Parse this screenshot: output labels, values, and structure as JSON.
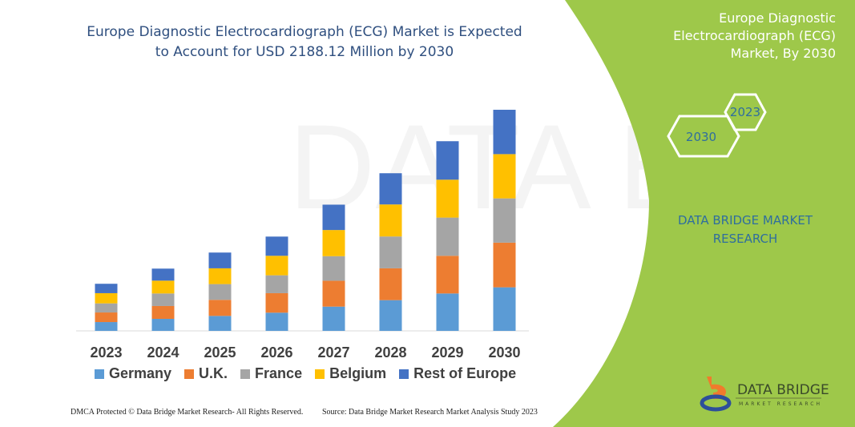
{
  "title": "Europe Diagnostic Electrocardiograph (ECG) Market is Expected to Account for USD 2188.12 Million by 2030",
  "side_panel": {
    "title": "Europe Diagnostic Electrocardiograph (ECG) Market, By 2030",
    "hex_labels": [
      "2023",
      "2030"
    ],
    "brand_text": "DATA BRIDGE MARKET RESEARCH",
    "panel_color": "#9ec84a"
  },
  "logo": {
    "name": "DATA BRIDGE",
    "tagline": "MARKET RESEARCH"
  },
  "footer": {
    "left": "DMCA Protected © Data Bridge Market Research- All Rights Reserved.",
    "right": "Source: Data Bridge Market Research Market Analysis Study 2023"
  },
  "chart_data": {
    "type": "bar",
    "stacked": true,
    "unit": "USD Million",
    "categories": [
      "2023",
      "2024",
      "2025",
      "2026",
      "2027",
      "2028",
      "2029",
      "2030"
    ],
    "ylim": [
      0,
      2188.12
    ],
    "grid": false,
    "legend_position": "bottom",
    "series": [
      {
        "name": "Germany",
        "color": "#5b9bd5",
        "values": [
          87,
          119,
          148,
          180,
          240,
          304,
          370,
          431
        ]
      },
      {
        "name": "U.K.",
        "color": "#ed7d31",
        "values": [
          95,
          127,
          159,
          193,
          256,
          315,
          373,
          442
        ]
      },
      {
        "name": "France",
        "color": "#a5a5a5",
        "values": [
          90,
          124,
          156,
          177,
          243,
          315,
          378,
          438
        ]
      },
      {
        "name": "Belgium",
        "color": "#ffc000",
        "values": [
          101,
          127,
          156,
          193,
          259,
          317,
          375,
          438
        ]
      },
      {
        "name": "Rest of Europe",
        "color": "#4472c4",
        "values": [
          93,
          119,
          156,
          190,
          251,
          309,
          381,
          439
        ]
      }
    ]
  }
}
